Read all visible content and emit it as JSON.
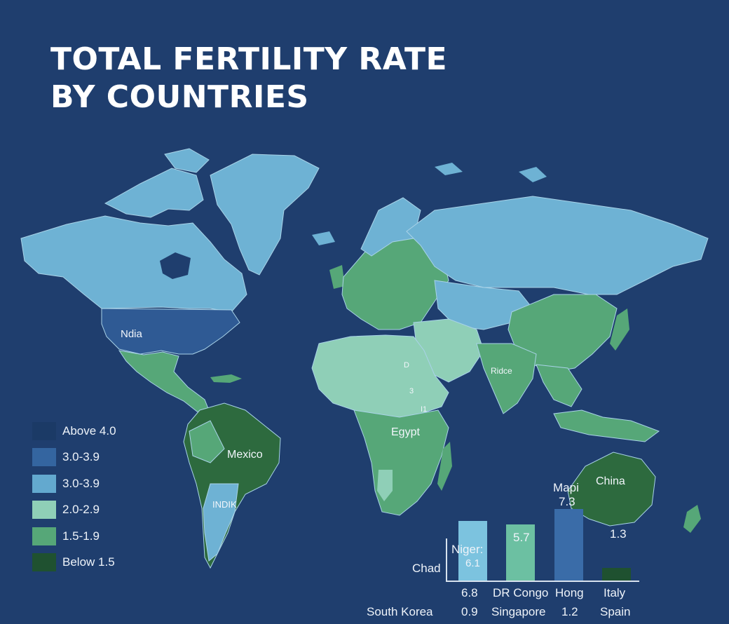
{
  "title": {
    "line1": "TOTAL FERTILITY RATE",
    "line2": "BY COUNTRIES"
  },
  "colors": {
    "background": "#1f3e6e",
    "above_4": "#1b3a66",
    "r3_39_dark": "#3465a0",
    "r3_39_light": "#63a9cf",
    "r2_29": "#8fcfb7",
    "r15_19": "#56a778",
    "below_15": "#235c36",
    "land_light": "#6eb2d4"
  },
  "legend": [
    {
      "label": "Above 4.0",
      "color": "#1b3a66"
    },
    {
      "label": "3.0-3.9",
      "color": "#3465a0"
    },
    {
      "label": "3.0-3.9",
      "color": "#63a9cf"
    },
    {
      "label": "2.0-2.9",
      "color": "#8fcfb7"
    },
    {
      "label": "1.5-1.9",
      "color": "#56a778"
    },
    {
      "label": "Below 1.5",
      "color": "#1f5130"
    }
  ],
  "map_labels": {
    "usa": "Ndia",
    "brazil": "Mexico",
    "argentina": "INDIK",
    "africa": "Egypt",
    "india": "Ridce",
    "australia": "China",
    "e_africa_1": "D",
    "e_africa_2": "3",
    "e_africa_3": "I1"
  },
  "chart_data": {
    "type": "bar",
    "bars": [
      {
        "value": 6.1,
        "color": "#7cc3df"
      },
      {
        "value": 5.7,
        "color": "#6cc0a2"
      },
      {
        "value": 7.3,
        "color": "#3a6ca8"
      },
      {
        "value": 1.3,
        "color": "#1f5130"
      }
    ],
    "labels": {
      "niger": "Niger:",
      "niger_value": "6.1",
      "chad": "Chad",
      "bar2_value": "5.7",
      "bar3_name": "Mapi",
      "bar3_value": "7.3",
      "bar4_value": "1.3",
      "chad_value": "6.8",
      "dr_congo": "DR Congo",
      "hong": "Hong",
      "italy": "Italy",
      "south_korea": "South Korea",
      "sk_value": "0.9",
      "singapore": "Singapore",
      "hk_value": "1.2",
      "spain": "Spain"
    },
    "ylim": [
      0,
      10
    ]
  }
}
